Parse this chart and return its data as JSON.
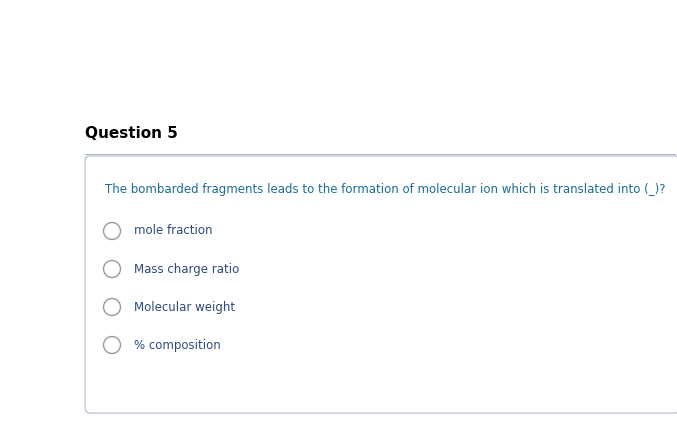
{
  "title": "Question 5",
  "title_color": "#000000",
  "title_fontsize": 11,
  "title_bold": true,
  "question_text": "The bombarded fragments leads to the formation of molecular ion which is translated into (_)?",
  "question_color": "#1a6b9a",
  "question_fontsize": 8.5,
  "options": [
    "mole fraction",
    "Mass charge ratio",
    "Molecular weight",
    "% composition"
  ],
  "options_color": "#2e4a7a",
  "options_fontsize": 8.5,
  "background_color": "#ffffff",
  "line_color": "#b0b8c8",
  "box_edge_color": "#b0b8c8",
  "circle_edge_color": "#999999",
  "fig_width": 6.77,
  "fig_height": 4.26,
  "dpi": 100
}
